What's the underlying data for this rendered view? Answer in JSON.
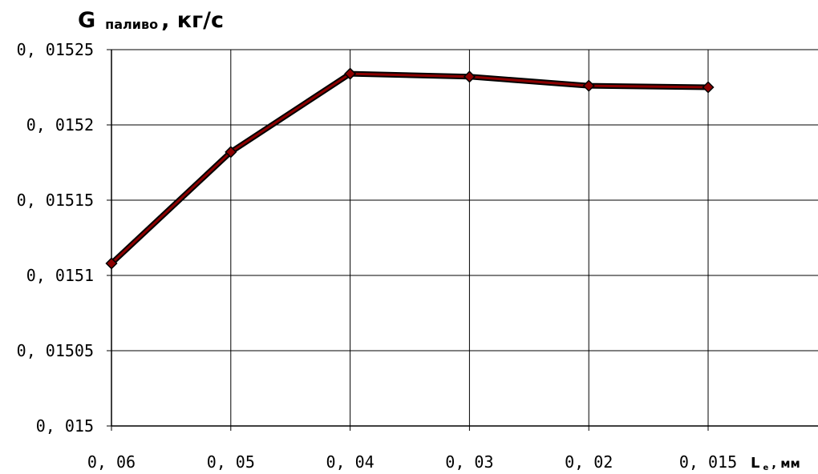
{
  "chart_data": {
    "type": "line",
    "title": "",
    "ylabel": {
      "main": "G",
      "sub": "паливо",
      "unit": ", кг/с"
    },
    "xlabel": {
      "main": "L",
      "sub": "е",
      "unit": ", мм"
    },
    "categories": [
      "0, 06",
      "0, 05",
      "0, 04",
      "0, 03",
      "0, 02",
      "0, 015"
    ],
    "y_tick_labels": [
      "0, 015",
      "0, 01505",
      "0, 0151",
      "0, 01515",
      "0, 0152",
      "0, 01525"
    ],
    "ylim": [
      0.015,
      0.01525
    ],
    "y_ticks": [
      0.015,
      0.01505,
      0.0151,
      0.01515,
      0.0152,
      0.01525
    ],
    "series": [
      {
        "values": [
          0.015108,
          0.015182,
          0.015234,
          0.015232,
          0.015226,
          0.015225
        ],
        "color": "#8b0000",
        "marker": "diamond"
      }
    ],
    "grid": true,
    "legend": "none"
  }
}
